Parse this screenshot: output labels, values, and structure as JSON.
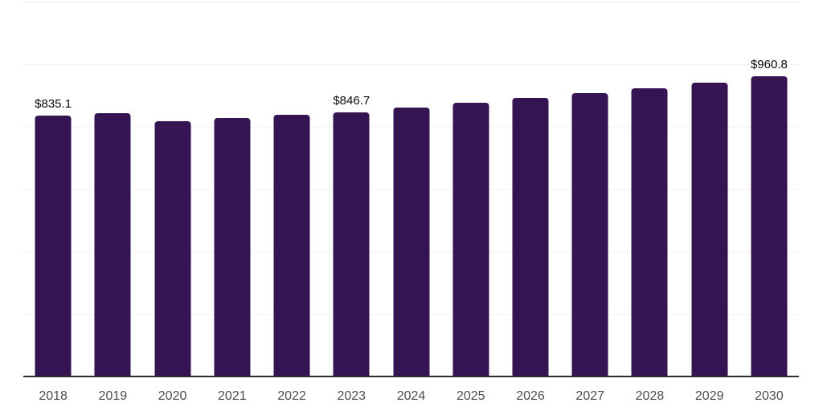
{
  "chart_data": {
    "type": "bar",
    "title": "",
    "xlabel": "",
    "ylabel": "",
    "categories": [
      "2018",
      "2019",
      "2020",
      "2021",
      "2022",
      "2023",
      "2024",
      "2025",
      "2026",
      "2027",
      "2028",
      "2029",
      "2030"
    ],
    "values": [
      835.1,
      844,
      817,
      827,
      837,
      846.7,
      861,
      876,
      891,
      906,
      923,
      941,
      960.8
    ],
    "data_labels": [
      "$835.1",
      null,
      null,
      null,
      null,
      "$846.7",
      null,
      null,
      null,
      null,
      null,
      null,
      "$960.8"
    ],
    "ylim": [
      0,
      1200
    ],
    "y_gridline_interval": 200,
    "y_tick_labels_visible": false,
    "grid": "horizontal",
    "legend": "none",
    "colors": {
      "bar": "#341452",
      "axis_line": "#2d2d2d",
      "gridline": "#f3f3f5",
      "top_gridline": "#ececee",
      "value_label": "#0a0a0a",
      "tick_label": "#4d4d4d",
      "background": "#ffffff"
    }
  }
}
